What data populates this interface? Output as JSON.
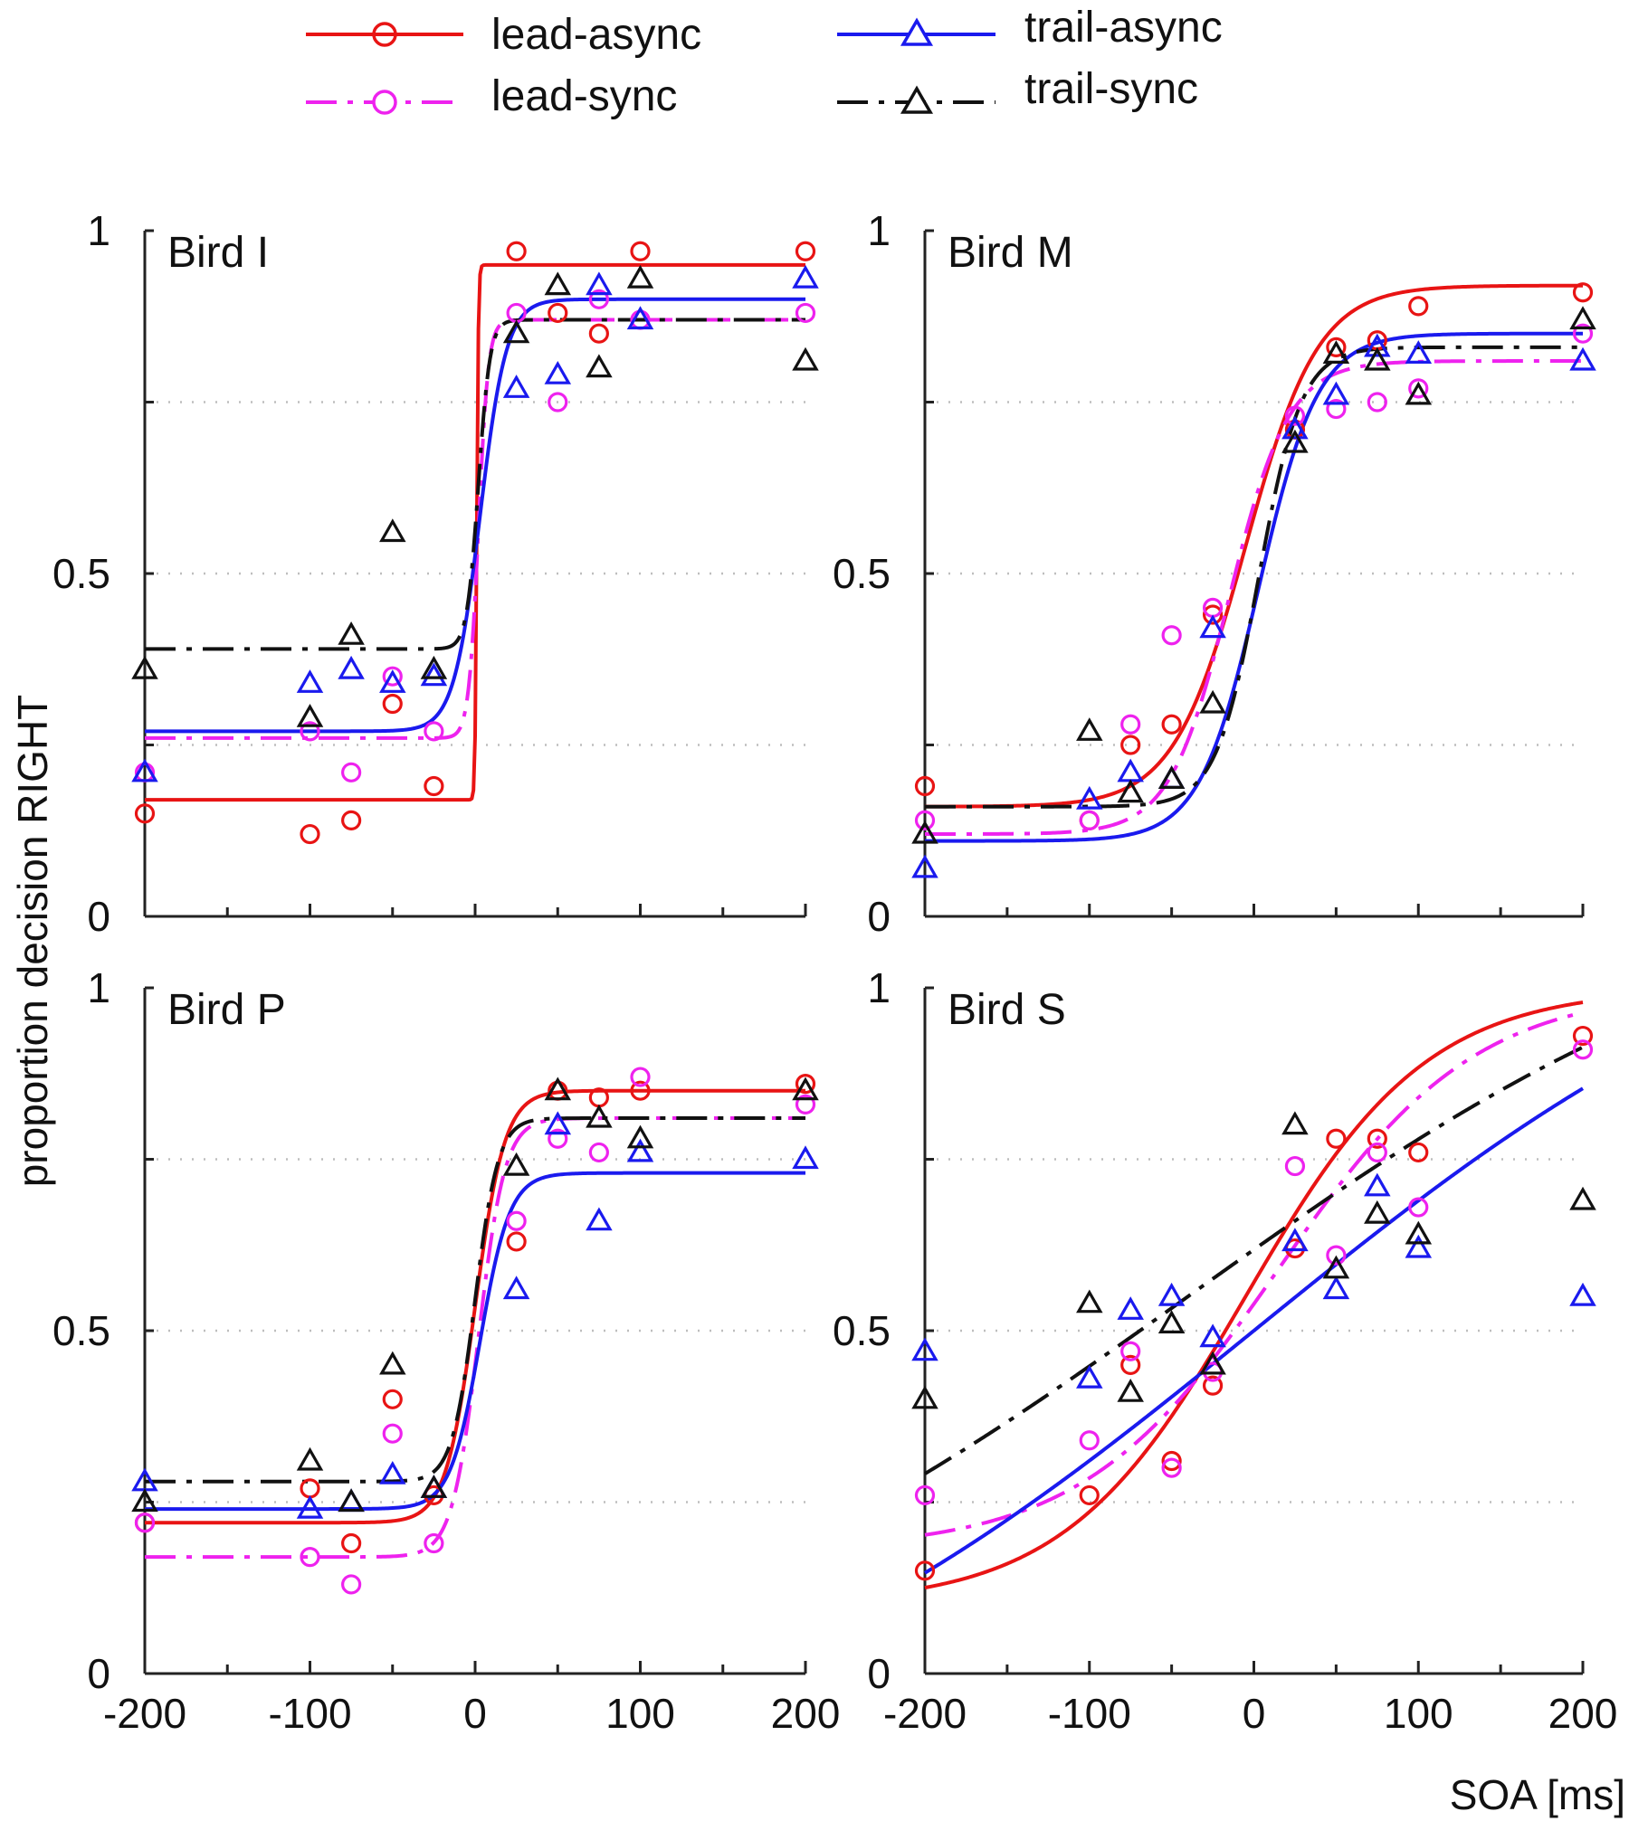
{
  "figure": {
    "ylabel": "proportion decision RIGHT",
    "xlabel": "SOA [ms]"
  },
  "legend": [
    {
      "label": "lead-async",
      "color": "#e81414",
      "marker": "circle",
      "dash": "solid"
    },
    {
      "label": "lead-sync",
      "color": "#ee22ee",
      "marker": "circle",
      "dash": "dashdot"
    },
    {
      "label": "trail-async",
      "color": "#1a1aee",
      "marker": "triangle",
      "dash": "solid"
    },
    {
      "label": "trail-sync",
      "color": "#111111",
      "marker": "triangle",
      "dash": "dashdot"
    }
  ],
  "chart_data": [
    {
      "type": "scatter",
      "panel": "Bird I",
      "title": "Bird I",
      "xlim": [
        -200,
        200
      ],
      "ylim": [
        0,
        1
      ],
      "xticks": [
        "-200",
        "-100",
        "0",
        "100",
        "200"
      ],
      "yticks": [
        "0",
        "0.5",
        "1"
      ],
      "x": [
        -200,
        -100,
        -75,
        -50,
        -25,
        25,
        50,
        75,
        100,
        200
      ],
      "series": [
        {
          "name": "lead-async",
          "values": [
            0.15,
            0.12,
            0.14,
            0.31,
            0.19,
            0.97,
            0.88,
            0.85,
            0.97,
            0.97
          ],
          "fit": {
            "lower": 0.17,
            "upper": 0.95,
            "mu": 1,
            "scale": 0.5
          }
        },
        {
          "name": "lead-sync",
          "values": [
            0.21,
            0.27,
            0.21,
            0.35,
            0.27,
            0.88,
            0.75,
            0.9,
            0.87,
            0.88
          ],
          "fit": {
            "lower": 0.26,
            "upper": 0.87,
            "mu": 2,
            "scale": 3
          }
        },
        {
          "name": "trail-async",
          "values": [
            0.21,
            0.34,
            0.36,
            0.34,
            0.35,
            0.77,
            0.79,
            0.92,
            0.87,
            0.93
          ],
          "fit": {
            "lower": 0.27,
            "upper": 0.9,
            "mu": 3,
            "scale": 8
          }
        },
        {
          "name": "trail-sync",
          "values": [
            0.36,
            0.29,
            0.41,
            0.56,
            0.36,
            0.85,
            0.92,
            0.8,
            0.93,
            0.81
          ],
          "fit": {
            "lower": 0.39,
            "upper": 0.87,
            "mu": 2,
            "scale": 3.5
          }
        }
      ]
    },
    {
      "type": "scatter",
      "panel": "Bird M",
      "title": "Bird M",
      "xlim": [
        -200,
        200
      ],
      "ylim": [
        0,
        1
      ],
      "xticks": [
        "-200",
        "-100",
        "0",
        "100",
        "200"
      ],
      "yticks": [
        "0",
        "0.5",
        "1"
      ],
      "x": [
        -200,
        -100,
        -75,
        -50,
        -25,
        25,
        50,
        75,
        100,
        200
      ],
      "series": [
        {
          "name": "lead-async",
          "values": [
            0.19,
            0.14,
            0.25,
            0.28,
            0.44,
            0.71,
            0.83,
            0.84,
            0.89,
            0.91
          ],
          "fit": {
            "lower": 0.16,
            "upper": 0.92,
            "mu": -5,
            "scale": 22
          }
        },
        {
          "name": "lead-sync",
          "values": [
            0.14,
            0.14,
            0.28,
            0.41,
            0.45,
            0.73,
            0.74,
            0.75,
            0.77,
            0.85
          ],
          "fit": {
            "lower": 0.12,
            "upper": 0.81,
            "mu": -15,
            "scale": 18
          }
        },
        {
          "name": "trail-async",
          "values": [
            0.07,
            0.17,
            0.21,
            0.2,
            0.42,
            0.71,
            0.76,
            0.83,
            0.82,
            0.81
          ],
          "fit": {
            "lower": 0.11,
            "upper": 0.85,
            "mu": 3,
            "scale": 18
          }
        },
        {
          "name": "trail-sync",
          "values": [
            0.12,
            0.27,
            0.18,
            0.2,
            0.31,
            0.69,
            0.82,
            0.81,
            0.76,
            0.87
          ],
          "fit": {
            "lower": 0.16,
            "upper": 0.83,
            "mu": 3,
            "scale": 13
          }
        }
      ]
    },
    {
      "type": "scatter",
      "panel": "Bird P",
      "title": "Bird P",
      "xlim": [
        -200,
        200
      ],
      "ylim": [
        0,
        1
      ],
      "xticks": [
        "-200",
        "-100",
        "0",
        "100",
        "200"
      ],
      "yticks": [
        "0",
        "0.5",
        "1"
      ],
      "x": [
        -200,
        -100,
        -75,
        -50,
        -25,
        25,
        50,
        75,
        100,
        200
      ],
      "series": [
        {
          "name": "lead-async",
          "values": [
            0.22,
            0.27,
            0.19,
            0.4,
            0.26,
            0.63,
            0.85,
            0.84,
            0.85,
            0.86
          ],
          "fit": {
            "lower": 0.22,
            "upper": 0.85,
            "mu": 0,
            "scale": 9
          }
        },
        {
          "name": "lead-sync",
          "values": [
            0.22,
            0.17,
            0.13,
            0.35,
            0.19,
            0.66,
            0.78,
            0.76,
            0.87,
            0.83
          ],
          "fit": {
            "lower": 0.17,
            "upper": 0.81,
            "mu": 2,
            "scale": 8
          }
        },
        {
          "name": "trail-async",
          "values": [
            0.28,
            0.24,
            0.25,
            0.29,
            0.27,
            0.56,
            0.8,
            0.66,
            0.76,
            0.75
          ],
          "fit": {
            "lower": 0.24,
            "upper": 0.73,
            "mu": 3,
            "scale": 9
          }
        },
        {
          "name": "trail-sync",
          "values": [
            0.25,
            0.31,
            0.25,
            0.45,
            0.27,
            0.74,
            0.85,
            0.81,
            0.78,
            0.85
          ],
          "fit": {
            "lower": 0.28,
            "upper": 0.81,
            "mu": 0,
            "scale": 7
          }
        }
      ]
    },
    {
      "type": "scatter",
      "panel": "Bird S",
      "title": "Bird S",
      "xlim": [
        -200,
        200
      ],
      "ylim": [
        0,
        1
      ],
      "xticks": [
        "-200",
        "-100",
        "0",
        "100",
        "200"
      ],
      "yticks": [
        "0",
        "0.5",
        "1"
      ],
      "x": [
        -200,
        -100,
        -75,
        -50,
        -25,
        25,
        50,
        75,
        100,
        200
      ],
      "series": [
        {
          "name": "lead-async",
          "values": [
            0.15,
            0.26,
            0.45,
            0.31,
            0.42,
            0.62,
            0.78,
            0.78,
            0.76,
            0.93
          ],
          "fit": {
            "lower": 0.1,
            "upper": 1.0,
            "mu": -5,
            "scale": 55
          }
        },
        {
          "name": "lead-sync",
          "values": [
            0.26,
            0.34,
            0.47,
            0.3,
            0.44,
            0.74,
            0.61,
            0.76,
            0.68,
            0.91
          ],
          "fit": {
            "lower": 0.18,
            "upper": 1.0,
            "mu": 15,
            "scale": 60
          }
        },
        {
          "name": "trail-async",
          "values": [
            0.47,
            0.43,
            0.53,
            0.55,
            0.49,
            0.63,
            0.56,
            0.71,
            0.62,
            0.55
          ],
          "fit": {
            "lower": -0.2,
            "upper": 1.2,
            "mu": 0,
            "scale": 180
          }
        },
        {
          "name": "trail-sync",
          "values": [
            0.4,
            0.54,
            0.41,
            0.51,
            0.45,
            0.8,
            0.59,
            0.67,
            0.64,
            0.69
          ],
          "fit": {
            "lower": -0.1,
            "upper": 1.2,
            "mu": -40,
            "scale": 190
          }
        }
      ]
    }
  ]
}
